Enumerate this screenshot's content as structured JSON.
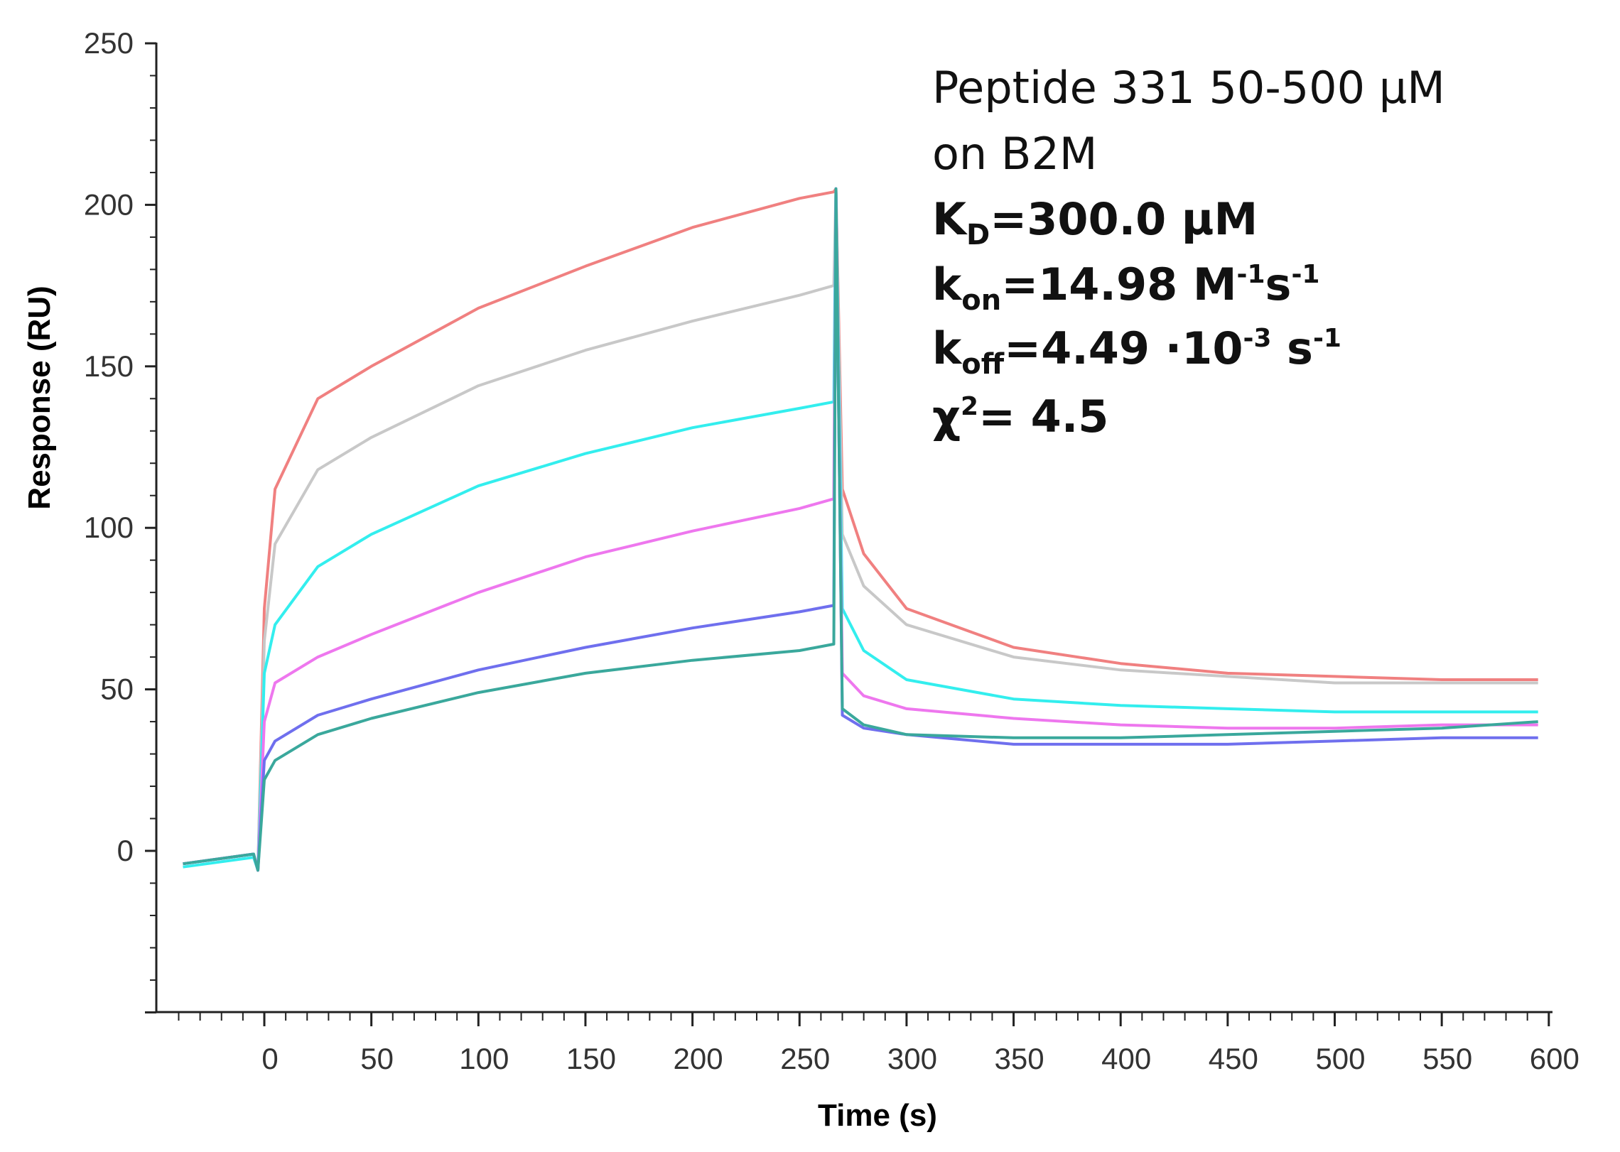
{
  "chart_data": {
    "type": "line",
    "title": "",
    "xlabel": "Time (s)",
    "ylabel": "Response (RU)",
    "xlim": [
      -50,
      600
    ],
    "ylim": [
      -50,
      250
    ],
    "x_ticks": [
      0,
      50,
      100,
      150,
      200,
      250,
      300,
      350,
      400,
      450,
      500,
      550,
      600
    ],
    "y_ticks": [
      0,
      50,
      100,
      150,
      200,
      250
    ],
    "grid": false,
    "legend": "none",
    "association_start": 0,
    "dissociation_start": 268,
    "series": [
      {
        "color": "#f08080",
        "x": [
          -38,
          -5,
          0,
          5,
          25,
          50,
          100,
          150,
          200,
          250,
          266,
          270,
          280,
          300,
          350,
          400,
          450,
          500,
          550,
          595
        ],
        "y": [
          -4,
          -1,
          75,
          112,
          140,
          150,
          168,
          181,
          193,
          202,
          204,
          112,
          92,
          75,
          63,
          58,
          55,
          54,
          53,
          53
        ]
      },
      {
        "color": "#c8c8c8",
        "x": [
          -38,
          -5,
          0,
          5,
          25,
          50,
          100,
          150,
          200,
          250,
          266,
          270,
          280,
          300,
          350,
          400,
          450,
          500,
          550,
          595
        ],
        "y": [
          -4,
          -1,
          65,
          95,
          118,
          128,
          144,
          155,
          164,
          172,
          175,
          98,
          82,
          70,
          60,
          56,
          54,
          52,
          52,
          52
        ]
      },
      {
        "color": "#33eeee",
        "x": [
          -38,
          -5,
          0,
          5,
          25,
          50,
          100,
          150,
          200,
          250,
          266,
          270,
          280,
          300,
          350,
          400,
          450,
          500,
          550,
          595
        ],
        "y": [
          -5,
          -2,
          55,
          70,
          88,
          98,
          113,
          123,
          131,
          137,
          139,
          75,
          62,
          53,
          47,
          45,
          44,
          43,
          43,
          43
        ]
      },
      {
        "color": "#ee77ee",
        "x": [
          -38,
          -5,
          0,
          5,
          25,
          50,
          100,
          150,
          200,
          250,
          266,
          270,
          280,
          300,
          350,
          400,
          450,
          500,
          550,
          595
        ],
        "y": [
          -4,
          -1,
          40,
          52,
          60,
          67,
          80,
          91,
          99,
          106,
          109,
          55,
          48,
          44,
          41,
          39,
          38,
          38,
          39,
          39
        ]
      },
      {
        "color": "#6f6fee",
        "x": [
          -38,
          -5,
          0,
          5,
          25,
          50,
          100,
          150,
          200,
          250,
          266,
          270,
          280,
          300,
          350,
          400,
          450,
          500,
          550,
          595
        ],
        "y": [
          -4,
          -1,
          28,
          34,
          42,
          47,
          56,
          63,
          69,
          74,
          76,
          42,
          38,
          36,
          33,
          33,
          33,
          34,
          35,
          35
        ]
      },
      {
        "color": "#3aa89c",
        "x": [
          -38,
          -5,
          0,
          5,
          25,
          50,
          100,
          150,
          200,
          250,
          266,
          270,
          280,
          300,
          350,
          400,
          450,
          500,
          550,
          595
        ],
        "y": [
          -4,
          -1,
          22,
          28,
          36,
          41,
          49,
          55,
          59,
          62,
          64,
          44,
          39,
          36,
          35,
          35,
          36,
          37,
          38,
          40
        ]
      }
    ],
    "annotations": {
      "line1": "Peptide 331 50-500 µM",
      "line2": "on B2M",
      "kd_label": "K",
      "kd_sub": "D",
      "kd_value": "=300.0 µM",
      "kon_label": "k",
      "kon_sub": "on",
      "kon_value": "=14.98 M",
      "kon_sup1": "-1",
      "kon_s": "s",
      "kon_sup2": "-1",
      "koff_label": "k",
      "koff_sub": "off",
      "koff_value": "=4.49  ·10",
      "koff_sup1": "-3",
      "koff_s": " s",
      "koff_sup2": "-1",
      "chi_label": "χ",
      "chi_sup": "2",
      "chi_value": "= 4.5"
    }
  }
}
